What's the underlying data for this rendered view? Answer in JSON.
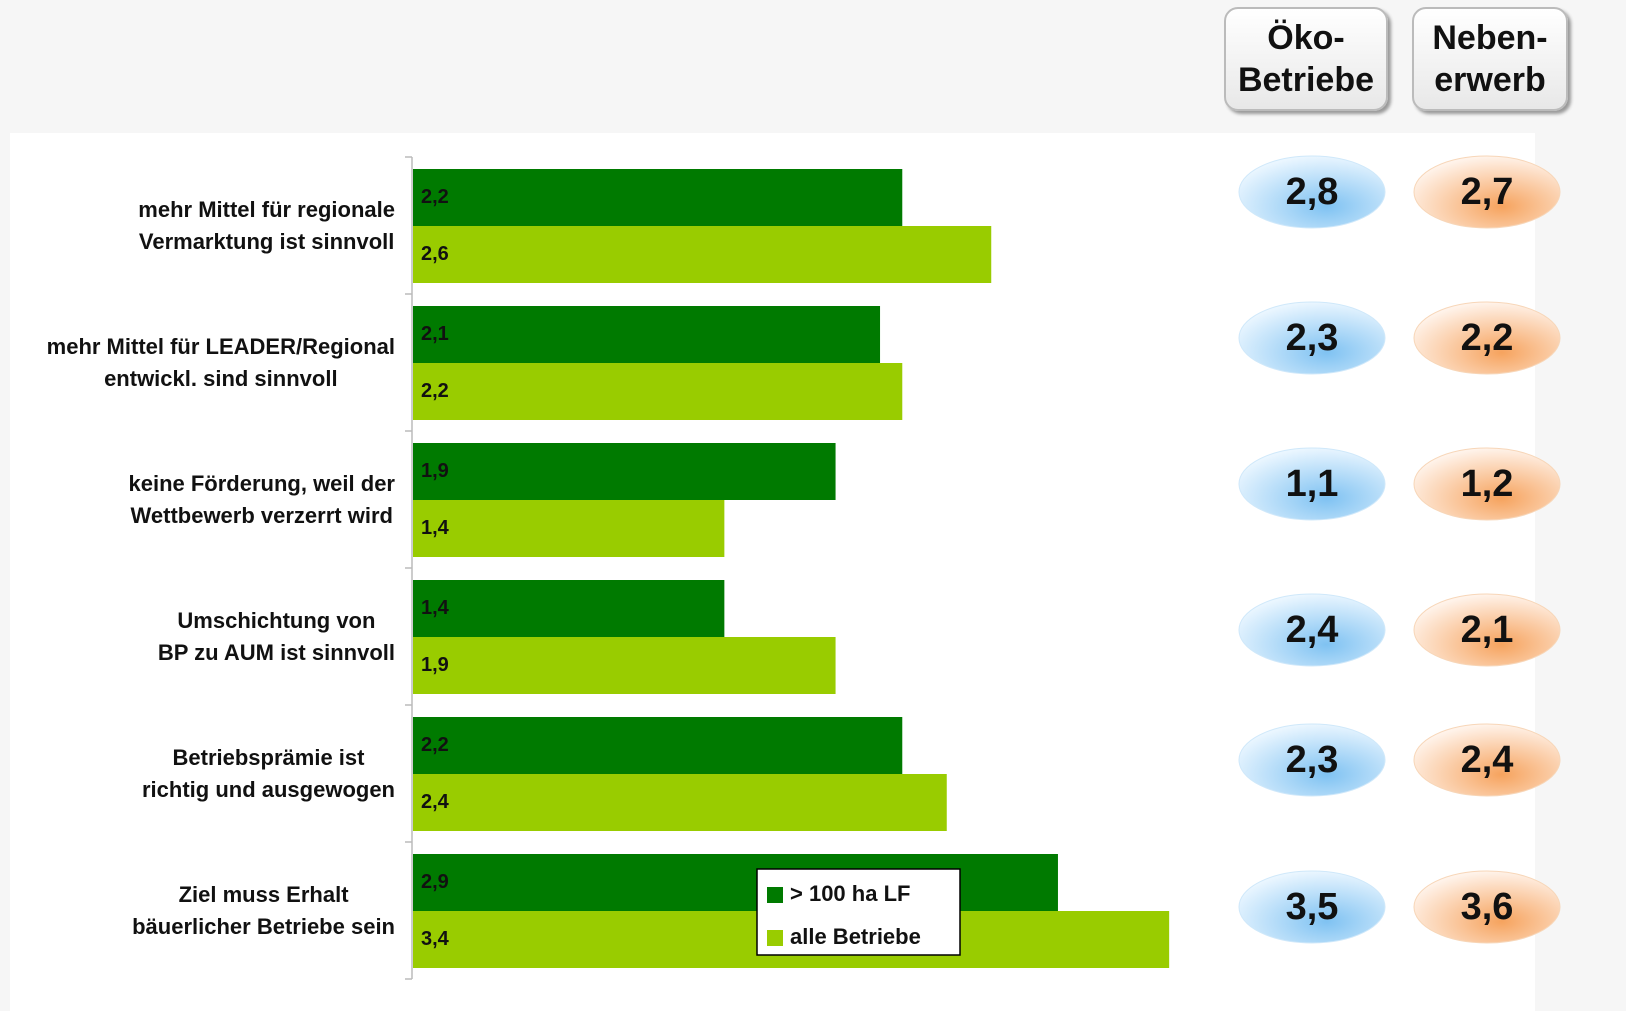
{
  "chart_data": {
    "type": "bar",
    "orientation": "horizontal",
    "categories": [
      "mehr Mittel für regionale\nVermarktung ist sinnvoll",
      "mehr Mittel für LEADER/Regional\nentwickl. sind sinnvoll",
      "keine Förderung, weil der\nWettbewerb verzerrt wird",
      "Umschichtung von\nBP zu AUM ist sinnvoll",
      "Betriebsprämie ist\nrichtig und ausgewogen",
      "Ziel muss Erhalt\nbäuerlicher Betriebe sein"
    ],
    "series": [
      {
        "name": "> 100 ha LF",
        "color": "#007a00",
        "values": [
          2.2,
          2.1,
          1.9,
          1.4,
          2.2,
          2.9
        ],
        "value_labels": [
          "2,2",
          "2,1",
          "1,9",
          "1,4",
          "2,2",
          "2,9"
        ]
      },
      {
        "name": "alle Betriebe",
        "color": "#99cc00",
        "values": [
          2.6,
          2.2,
          1.4,
          1.9,
          2.4,
          3.4
        ],
        "value_labels": [
          "2,6",
          "2,2",
          "1,4",
          "1,9",
          "2,4",
          "3,4"
        ]
      }
    ],
    "xlim": [
      0,
      5
    ],
    "legend": "bottom-center",
    "side_columns": [
      {
        "name": "Öko-\nBetriebe",
        "color": "#9fd0f5",
        "values": [
          2.8,
          2.3,
          1.1,
          2.4,
          2.3,
          3.5
        ],
        "value_labels": [
          "2,8",
          "2,3",
          "1,1",
          "2,4",
          "2,3",
          "3,5"
        ]
      },
      {
        "name": "Neben-\nerwerb",
        "color": "#f9c08e",
        "values": [
          2.7,
          2.2,
          1.2,
          2.1,
          2.4,
          3.6
        ],
        "value_labels": [
          "2,7",
          "2,2",
          "1,2",
          "2,1",
          "2,4",
          "3,6"
        ]
      }
    ]
  }
}
